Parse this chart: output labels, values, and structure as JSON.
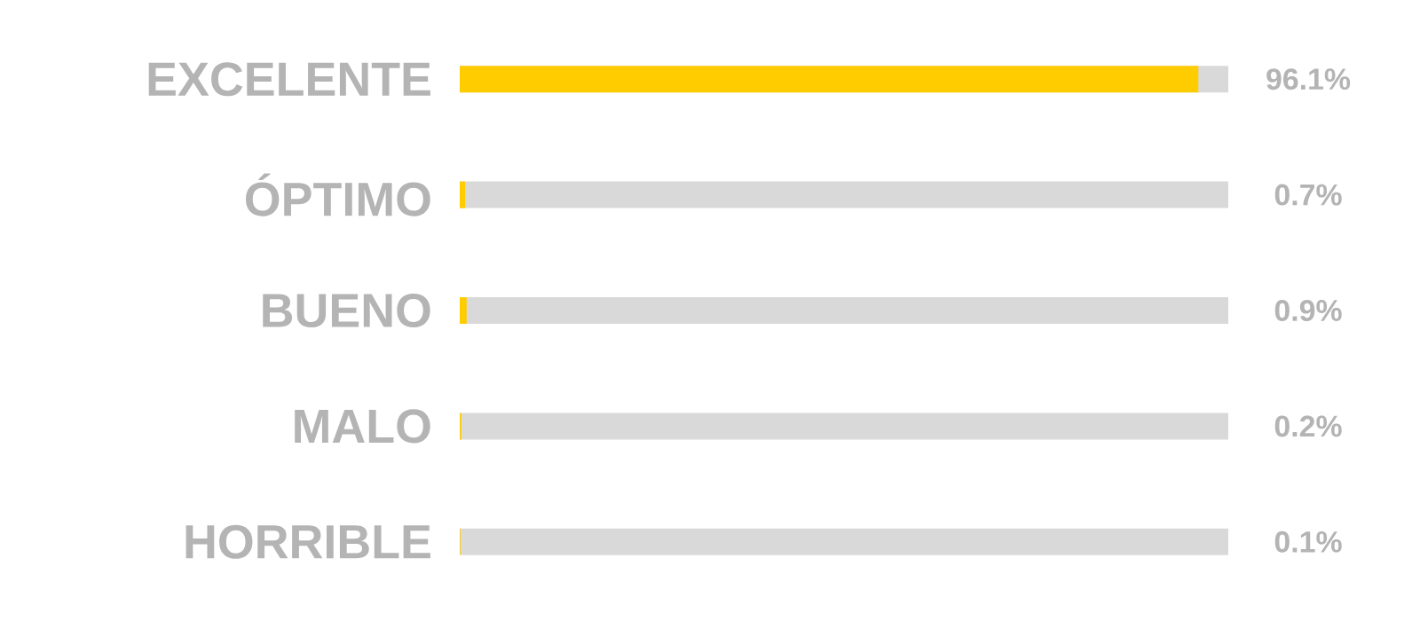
{
  "chart_data": {
    "type": "bar",
    "orientation": "horizontal",
    "categories": [
      "EXCELENTE",
      "ÓPTIMO",
      "BUENO",
      "MALO",
      "HORRIBLE"
    ],
    "values": [
      96.1,
      0.7,
      0.9,
      0.2,
      0.1
    ],
    "value_labels": [
      "96.1%",
      "0.7%",
      "0.9%",
      "0.2%",
      "0.1%"
    ],
    "color": "#ffcc00",
    "xlim": [
      0,
      100
    ]
  }
}
